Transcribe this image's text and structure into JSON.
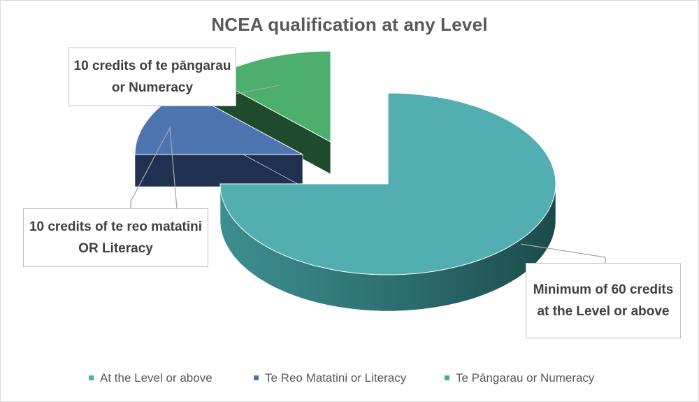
{
  "chart_data": {
    "type": "pie",
    "style": "3d-exploded",
    "title": "NCEA qualification at any Level",
    "categories": [
      "At the Level or above",
      "Te Reo Matatini or Literacy",
      "Te Pāngarau or Numeracy"
    ],
    "values": [
      60,
      10,
      10
    ],
    "colors": [
      "#52aeb0",
      "#4e74b0",
      "#4caf6e"
    ],
    "data_labels": [
      "Minimum of 60 credits at the Level or above",
      "10 credits of te reo matatini OR Literacy",
      "10 credits of te pāngarau or Numeracy"
    ],
    "legend_position": "bottom"
  }
}
